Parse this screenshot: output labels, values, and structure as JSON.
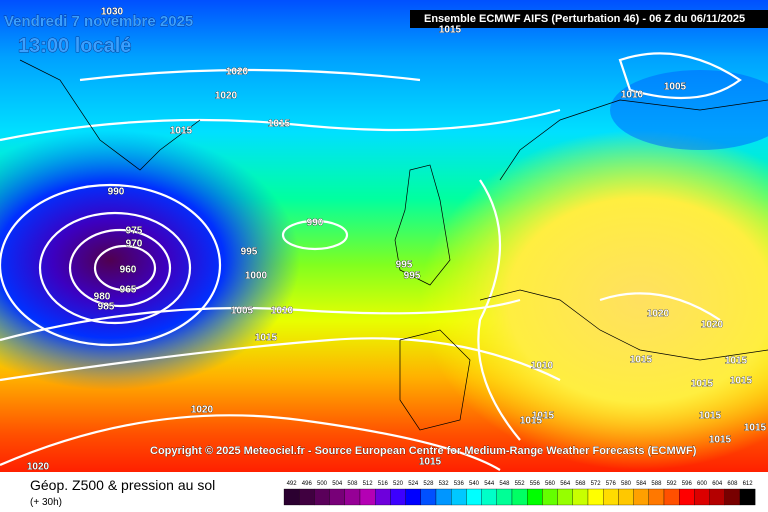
{
  "header": {
    "date": "Vendredi 7 novembre 2025",
    "local_time": "13:00 localé",
    "model": "Ensemble ECMWF AIFS  (Perturbation 46)  -  06 Z du 06/11/2025"
  },
  "isobar_labels": [
    "1030",
    "1015",
    "1020",
    "1020",
    "1010",
    "1005",
    "1015",
    "1015",
    "990",
    "990",
    "975",
    "970",
    "960",
    "965",
    "980",
    "985",
    "995",
    "1000",
    "995",
    "995",
    "1005",
    "1010",
    "1015",
    "1020",
    "1020",
    "1010",
    "1015",
    "1015",
    "1015",
    "1015",
    "1015",
    "1015",
    "1015",
    "1020",
    "1015",
    "1015",
    "1015",
    "1020"
  ],
  "copyright": "Copyright © 2025 Meteociel.fr - Source European Centre for Medium-Range Weather Forecasts (ECMWF)",
  "footer": {
    "title": "Géop. Z500 & pression au sol",
    "lead": "(+ 30h)"
  },
  "legend": {
    "values": [
      492,
      496,
      500,
      504,
      508,
      512,
      516,
      520,
      524,
      528,
      532,
      536,
      540,
      544,
      548,
      552,
      556,
      560,
      564,
      568,
      572,
      576,
      580,
      584,
      588,
      592,
      596,
      600,
      604,
      608,
      612
    ],
    "colors": [
      "#2b0030",
      "#400040",
      "#5a005a",
      "#780078",
      "#960096",
      "#b400b4",
      "#6e00dc",
      "#3c00ff",
      "#0000ff",
      "#0050ff",
      "#0096ff",
      "#00c8ff",
      "#00ffff",
      "#00ffc8",
      "#00ff96",
      "#00ff64",
      "#00ff00",
      "#64ff00",
      "#96ff00",
      "#c8ff00",
      "#ffff00",
      "#ffdc00",
      "#ffc800",
      "#ffa000",
      "#ff7800",
      "#ff5000",
      "#ff0000",
      "#dc0000",
      "#b40000",
      "#780000",
      "#000000"
    ]
  }
}
